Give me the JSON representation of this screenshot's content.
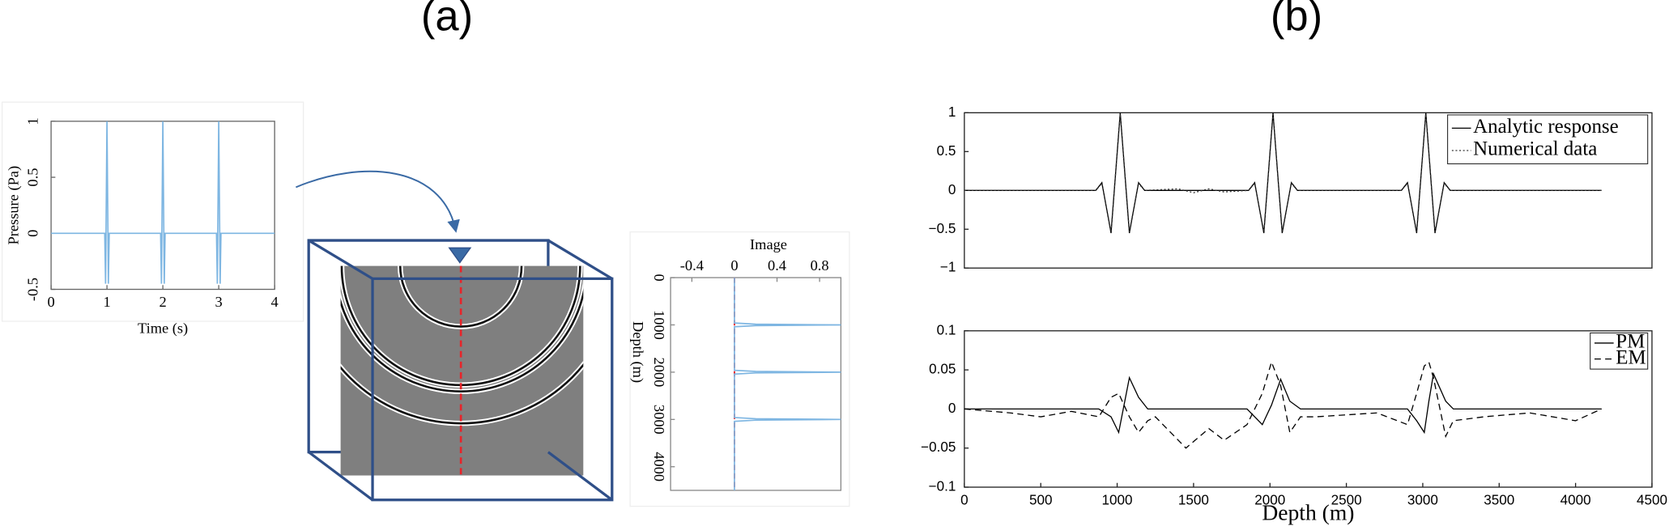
{
  "panel_labels": [
    "(a)",
    "(b)"
  ],
  "chart_data": [
    {
      "type": "line",
      "xlabel": "Time (s)",
      "ylabel": "Pressure (Pa)",
      "x": [
        0,
        0.96,
        0.975,
        1,
        1.025,
        1.04,
        1.96,
        1.975,
        2,
        2.025,
        2.04,
        2.96,
        2.975,
        3,
        3.025,
        3.04,
        4
      ],
      "values": [
        0,
        0,
        -0.45,
        1,
        -0.45,
        0,
        0,
        -0.45,
        1,
        -0.45,
        0,
        0,
        -0.45,
        1,
        -0.45,
        0,
        0
      ],
      "color": "#7eb6e2",
      "xlim": [
        0,
        4
      ],
      "xticks": [
        0,
        1,
        2,
        3,
        4
      ],
      "ylim": [
        -0.5,
        1
      ],
      "yticks": [
        -0.5,
        0,
        0.5,
        1
      ]
    },
    {
      "type": "line",
      "orientation": "vertical",
      "xlabel": "Depth (m)",
      "ylabel": "Image",
      "x": [
        0,
        960,
        985,
        1000,
        1015,
        1040,
        1960,
        1985,
        2000,
        2015,
        2040,
        2960,
        2985,
        3000,
        3015,
        3040,
        4500
      ],
      "values": [
        0,
        0,
        0.2,
        1,
        0.2,
        0,
        0,
        0.2,
        1,
        0.2,
        0,
        0,
        0.2,
        1,
        0.2,
        0,
        0
      ],
      "color": "#7eb6e2",
      "xlim": [
        0,
        4500
      ],
      "xticks": [
        0,
        1000,
        2000,
        3000,
        4000
      ],
      "ylim": [
        -0.6,
        1
      ],
      "yticks": [
        -0.4,
        0,
        0.4,
        0.8
      ],
      "reference_line": {
        "value": 0,
        "color": "#e8242a"
      }
    },
    {
      "type": "line",
      "x": [
        0,
        860,
        900,
        960,
        1020,
        1080,
        1140,
        1180,
        1400,
        1500,
        1600,
        1700,
        1860,
        1900,
        1960,
        2020,
        2080,
        2140,
        2180,
        2860,
        2900,
        2960,
        3020,
        3080,
        3140,
        3180,
        4170
      ],
      "series": [
        {
          "name": "Analytic response",
          "color": "#000000",
          "linestyle": "solid",
          "values": [
            0,
            0,
            0.1,
            -0.55,
            1,
            -0.55,
            0.1,
            0,
            0,
            0,
            0,
            0,
            0,
            0.1,
            -0.55,
            1,
            -0.55,
            0.1,
            0,
            0,
            0.1,
            -0.55,
            1,
            -0.55,
            0.1,
            0,
            0
          ]
        },
        {
          "name": "Numerical data",
          "color": "#333333",
          "linestyle": "dotted",
          "values": [
            0,
            0,
            0.09,
            -0.53,
            0.98,
            -0.53,
            0.09,
            0,
            0.02,
            -0.03,
            0.02,
            -0.02,
            0,
            0.09,
            -0.53,
            0.98,
            -0.53,
            0.09,
            0,
            0,
            0.09,
            -0.53,
            0.98,
            -0.53,
            0.09,
            0,
            0
          ]
        }
      ],
      "xlim": [
        0,
        4500
      ],
      "ylim": [
        -1,
        1
      ],
      "yticks": [
        {
          "value": -1,
          "label": "−1"
        },
        {
          "value": -0.5,
          "label": "−0.5"
        },
        0,
        0.5,
        1
      ],
      "legend": "upper right"
    },
    {
      "type": "line",
      "xlabel": "Depth (m)",
      "x": [
        0,
        300,
        500,
        700,
        880,
        960,
        1010,
        1080,
        1140,
        1200,
        1250,
        1450,
        1600,
        1700,
        1850,
        1950,
        2010,
        2070,
        2130,
        2200,
        2300,
        2700,
        2900,
        2960,
        3010,
        3040,
        3070,
        3150,
        3200,
        3400,
        3700,
        4000,
        4170
      ],
      "series": [
        {
          "name": "PM",
          "color": "#000000",
          "linestyle": "solid",
          "values": [
            0,
            0,
            0,
            0,
            0,
            -0.01,
            -0.03,
            0.04,
            0.015,
            0,
            0,
            0,
            0,
            0,
            0,
            -0.02,
            0.005,
            0.038,
            0.01,
            0,
            0,
            0,
            0,
            -0.015,
            -0.03,
            0.01,
            0.045,
            0.01,
            0,
            0,
            0,
            0,
            0
          ]
        },
        {
          "name": "EM",
          "color": "#000000",
          "linestyle": "dashed",
          "values": [
            0,
            -0.005,
            -0.01,
            -0.003,
            -0.01,
            0.015,
            0.02,
            -0.01,
            -0.03,
            -0.015,
            -0.01,
            -0.05,
            -0.025,
            -0.04,
            -0.02,
            0.02,
            0.06,
            0.03,
            -0.03,
            -0.01,
            -0.01,
            -0.005,
            -0.02,
            0.02,
            0.055,
            0.06,
            0.04,
            -0.035,
            -0.015,
            -0.01,
            -0.005,
            -0.015,
            0
          ]
        }
      ],
      "xlim": [
        0,
        4500
      ],
      "xticks": [
        0,
        500,
        1000,
        1500,
        2000,
        2500,
        3000,
        3500,
        4000,
        4500
      ],
      "ylim": [
        -0.1,
        0.1
      ],
      "yticks": [
        {
          "value": -0.1,
          "label": "−0.1"
        },
        {
          "value": -0.05,
          "label": "−0.05"
        },
        0,
        0.05,
        0.1
      ],
      "legend": "upper right"
    }
  ]
}
